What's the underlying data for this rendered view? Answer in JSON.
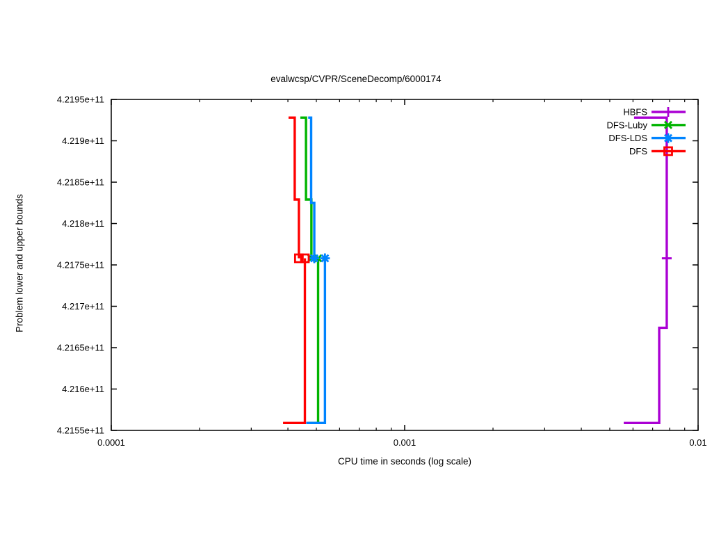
{
  "title": "evalwcsp/CVPR/SceneDecomp/6000174",
  "axes": {
    "x": {
      "label": "CPU time in seconds (log scale)",
      "scale": "log",
      "min": 0.0001,
      "max": 0.01,
      "major_ticks": [
        {
          "v": 0.0001,
          "label": "0.0001"
        },
        {
          "v": 0.001,
          "label": "0.001"
        },
        {
          "v": 0.01,
          "label": "0.01"
        }
      ],
      "minor_tick_decades": [
        0.0001,
        0.001
      ]
    },
    "y": {
      "label": "Problem lower and upper bounds",
      "scale": "linear",
      "min": 421550000000,
      "max": 421950000000,
      "major_ticks": [
        {
          "v": 421550000000,
          "label": "4.2155e+11"
        },
        {
          "v": 421600000000,
          "label": "4.216e+11"
        },
        {
          "v": 421650000000,
          "label": "4.2165e+11"
        },
        {
          "v": 421700000000,
          "label": "4.217e+11"
        },
        {
          "v": 421750000000,
          "label": "4.2175e+11"
        },
        {
          "v": 421800000000,
          "label": "4.218e+11"
        },
        {
          "v": 421850000000,
          "label": "4.2185e+11"
        },
        {
          "v": 421900000000,
          "label": "4.219e+11"
        },
        {
          "v": 421950000000,
          "label": "4.2195e+11"
        }
      ]
    }
  },
  "legend": {
    "position": "top-right-inside",
    "entries": [
      "HBFS",
      "DFS-Luby",
      "DFS-LDS",
      "DFS"
    ]
  },
  "chart_data": {
    "type": "line",
    "title": "evalwcsp/CVPR/SceneDecomp/6000174",
    "xlabel": "CPU time in seconds (log scale)",
    "ylabel": "Problem lower and upper bounds",
    "x_scale": "log",
    "xlim": [
      0.0001,
      0.01
    ],
    "ylim": [
      421550000000,
      421950000000
    ],
    "grid": false,
    "optimum": 421758000000,
    "series": [
      {
        "name": "HBFS",
        "color": "#aa00d4",
        "marker": "plus",
        "upper_bound": [
          [
            0.00605,
            421928000000
          ],
          [
            0.00782,
            421928000000
          ],
          [
            0.00782,
            421758000000
          ]
        ],
        "lower_bound": [
          [
            0.00558,
            421559000000
          ],
          [
            0.00737,
            421559000000
          ],
          [
            0.00737,
            421674000000
          ],
          [
            0.00782,
            421674000000
          ],
          [
            0.00782,
            421758000000
          ]
        ]
      },
      {
        "name": "DFS-Luby",
        "color": "#00b400",
        "marker": "cross",
        "upper_bound": [
          [
            0.000441,
            421928000000
          ],
          [
            0.000461,
            421928000000
          ],
          [
            0.000461,
            421829000000
          ],
          [
            0.000481,
            421829000000
          ],
          [
            0.000481,
            421758000000
          ]
        ],
        "lower_bound": [
          [
            0.000466,
            421559000000
          ],
          [
            0.000507,
            421559000000
          ],
          [
            0.000507,
            421758000000
          ]
        ]
      },
      {
        "name": "DFS-LDS",
        "color": "#0084ff",
        "marker": "asterisk",
        "upper_bound": [
          [
            0.000469,
            421928000000
          ],
          [
            0.00048,
            421928000000
          ],
          [
            0.00048,
            421825000000
          ],
          [
            0.000492,
            421825000000
          ],
          [
            0.000492,
            421758000000
          ]
        ],
        "lower_bound": [
          [
            0.000462,
            421559000000
          ],
          [
            0.000535,
            421559000000
          ],
          [
            0.000535,
            421758000000
          ]
        ]
      },
      {
        "name": "DFS",
        "color": "#ff0000",
        "marker": "square",
        "upper_bound": [
          [
            0.000402,
            421928000000
          ],
          [
            0.000422,
            421928000000
          ],
          [
            0.000422,
            421829000000
          ],
          [
            0.000436,
            421829000000
          ],
          [
            0.000436,
            421758000000
          ]
        ],
        "lower_bound": [
          [
            0.000385,
            421559000000
          ],
          [
            0.000457,
            421559000000
          ],
          [
            0.000457,
            421758000000
          ]
        ]
      }
    ]
  },
  "colors": {
    "hbfs": "#aa00d4",
    "dfs_luby": "#00b400",
    "dfs_lds": "#0084ff",
    "dfs": "#ff0000",
    "axis": "#000000",
    "background": "#ffffff"
  }
}
